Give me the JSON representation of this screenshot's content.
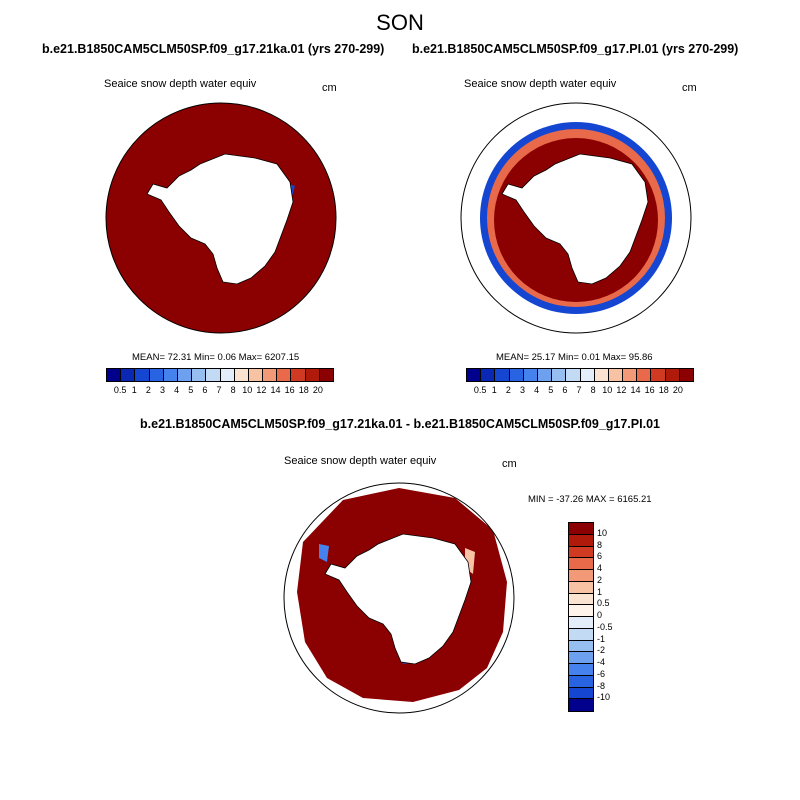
{
  "figure": {
    "season": "SON",
    "diff_title": "b.e21.B1850CAM5CLM50SP.f09_g17.21ka.01 - b.e21.B1850CAM5CLM50SP.f09_g17.PI.01"
  },
  "panels": [
    {
      "title": "b.e21.B1850CAM5CLM50SP.f09_g17.21ka.01 (yrs 270-299)",
      "variable": "Seaice snow depth water equiv",
      "units": "cm",
      "stats": "MEAN=  72.31  Min=   0.06  Max= 6207.15"
    },
    {
      "title": "b.e21.B1850CAM5CLM50SP.f09_g17.PI.01 (yrs 270-299)",
      "variable": "Seaice snow depth water equiv",
      "units": "cm",
      "stats": "MEAN=  25.17  Min=   0.01  Max=  95.86"
    },
    {
      "variable": "Seaice snow depth water equiv",
      "units": "cm",
      "stats": "MIN = -37.26 MAX = 6165.21"
    }
  ],
  "colorbar_abs": {
    "labels": [
      "0.5",
      "1",
      "2",
      "3",
      "4",
      "5",
      "6",
      "7",
      "8",
      "10",
      "12",
      "14",
      "16",
      "18",
      "20"
    ],
    "colors": [
      "#00008c",
      "#0a28b4",
      "#1446d2",
      "#2864e1",
      "#4682ee",
      "#6ea0f0",
      "#96bef0",
      "#c2daf4",
      "#e4eefa",
      "#fbe3d2",
      "#f8c3a4",
      "#f29a78",
      "#e86a4a",
      "#d03a22",
      "#b01a0a",
      "#8b0000"
    ]
  },
  "colorbar_diff": {
    "labels": [
      "10",
      "8",
      "6",
      "4",
      "2",
      "1",
      "0.5",
      "0",
      "-0.5",
      "-1",
      "-2",
      "-4",
      "-6",
      "-8",
      "-10"
    ],
    "colors": [
      "#8b0000",
      "#b01a0a",
      "#d03a22",
      "#e86a4a",
      "#f29a78",
      "#f8c3a4",
      "#fbe3d2",
      "#fff4ec",
      "#e4eefa",
      "#c2daf4",
      "#96bef0",
      "#6ea0f0",
      "#4682ee",
      "#2864e1",
      "#1446d2",
      "#00008c"
    ]
  },
  "map_colors": {
    "ice": "#8b0000",
    "ice_light": "#e86a4a",
    "ice_pale": "#f8c3a4",
    "low_blue": "#1446d2",
    "low_mid": "#4682ee",
    "land": "#ffffff"
  }
}
